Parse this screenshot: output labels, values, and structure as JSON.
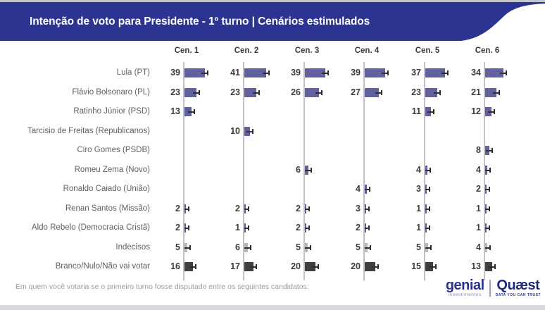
{
  "title": "Intenção de voto para Presidente - 1º turno | Cenários estimulados",
  "footer": {
    "question": "Em quem você votaria se o primeiro turno fosse disputado entre os seguintes candidatos:"
  },
  "logos": {
    "genial": {
      "name": "genial",
      "sub": "investimentos"
    },
    "quaest": {
      "name": "Quæst",
      "sub": "DATA YOU CAN TRUST"
    }
  },
  "colors": {
    "banner": "#2b3491",
    "bar_candidate": "#62619f",
    "bar_undecided": "#b9b9bc",
    "bar_blank": "#3f3f41",
    "axis_line": "#c2c2c6",
    "error_bar": "#2e2e2e"
  },
  "chart_data": {
    "type": "bar",
    "orientation": "horizontal",
    "title": "Intenção de voto para Presidente - 1º turno | Cenários estimulados",
    "legend_position": "none",
    "grid": "vertical-baseline-per-scenario",
    "value_unit": "%",
    "xlim_per_column": [
      0,
      45
    ],
    "scenarios": [
      "Cen. 1",
      "Cen. 2",
      "Cen. 3",
      "Cen. 4",
      "Cen. 5",
      "Cen. 6"
    ],
    "rows": [
      {
        "label": "Lula (PT)",
        "color": "#62619f",
        "values": [
          39,
          41,
          39,
          39,
          37,
          34
        ]
      },
      {
        "label": "Flávio Bolsonaro (PL)",
        "color": "#62619f",
        "values": [
          23,
          23,
          26,
          27,
          23,
          21
        ]
      },
      {
        "label": "Ratinho Júnior (PSD)",
        "color": "#62619f",
        "values": [
          13,
          null,
          null,
          null,
          11,
          12
        ]
      },
      {
        "label": "Tarcisio de Freitas (Republicanos)",
        "color": "#62619f",
        "values": [
          null,
          10,
          null,
          null,
          null,
          null
        ]
      },
      {
        "label": "Ciro Gomes (PSDB)",
        "color": "#62619f",
        "values": [
          null,
          null,
          null,
          null,
          null,
          8
        ]
      },
      {
        "label": "Romeu Zema (Novo)",
        "color": "#62619f",
        "values": [
          null,
          null,
          6,
          null,
          4,
          4
        ]
      },
      {
        "label": "Ronaldo Caiado (União)",
        "color": "#62619f",
        "values": [
          null,
          null,
          null,
          4,
          3,
          2
        ]
      },
      {
        "label": "Renan Santos (Missão)",
        "color": "#62619f",
        "values": [
          2,
          2,
          2,
          3,
          1,
          1
        ]
      },
      {
        "label": "Aldo Rebelo (Democracia Cristã)",
        "color": "#62619f",
        "values": [
          2,
          1,
          2,
          2,
          1,
          1
        ]
      },
      {
        "label": "Indecisos",
        "color": "#b9b9bc",
        "values": [
          5,
          6,
          5,
          5,
          5,
          4
        ]
      },
      {
        "label": "Branco/Nulo/Não vai votar",
        "color": "#3f3f41",
        "values": [
          16,
          17,
          20,
          20,
          15,
          13
        ]
      }
    ]
  }
}
